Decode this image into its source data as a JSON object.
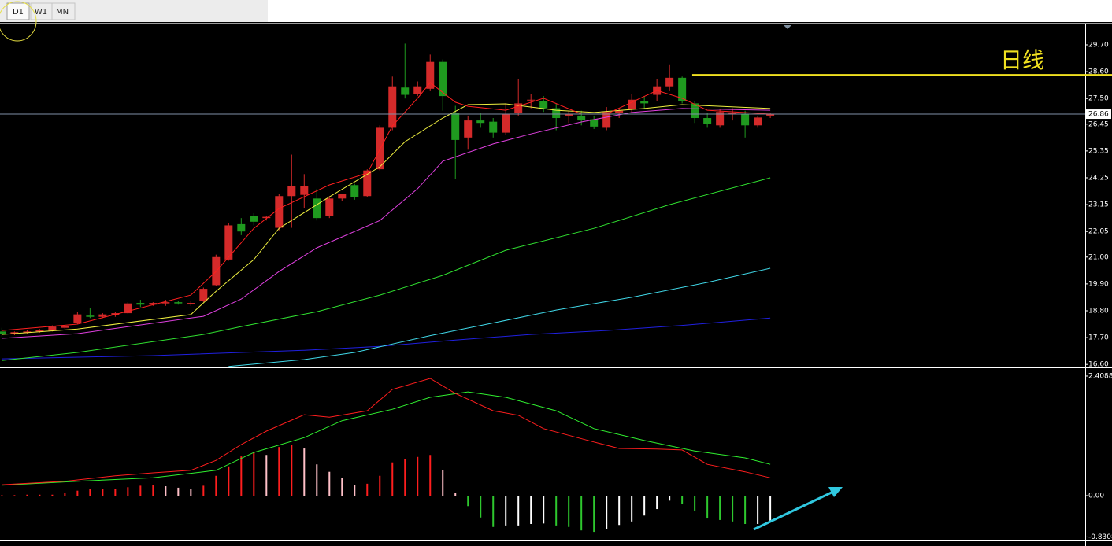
{
  "tabs": [
    "D1",
    "W1",
    "MN"
  ],
  "chart_data": [
    {
      "type": "candlestick",
      "categories": [
        null,
        null,
        null,
        null,
        null,
        null,
        null,
        null,
        null,
        null,
        null,
        null,
        null,
        null,
        null,
        null,
        null,
        null,
        null,
        null,
        null,
        null,
        null,
        null,
        null,
        null,
        null,
        null,
        null,
        null,
        null,
        null,
        null,
        null,
        null,
        null,
        null,
        null,
        null,
        null,
        null,
        null,
        null,
        null,
        null,
        null,
        null,
        null,
        null,
        null,
        null,
        null,
        null,
        null,
        null,
        null,
        null,
        null,
        null,
        null,
        null,
        null
      ],
      "open": [
        17.95,
        17.85,
        17.9,
        17.95,
        17.98,
        18.1,
        18.3,
        18.6,
        18.55,
        18.62,
        18.7,
        19.12,
        19.05,
        19.1,
        19.15,
        19.1,
        19.2,
        19.85,
        20.9,
        22.35,
        22.7,
        22.6,
        22.2,
        23.5,
        23.55,
        23.4,
        22.7,
        23.4,
        23.95,
        23.5,
        24.6,
        26.3,
        27.95,
        27.7,
        27.9,
        29.0,
        26.9,
        25.9,
        26.6,
        26.55,
        26.1,
        26.9,
        27.45,
        27.4,
        27.1,
        26.8,
        26.8,
        26.65,
        26.3,
        26.9,
        27.05,
        27.4,
        27.65,
        28.0,
        28.35,
        27.3,
        26.7,
        26.4,
        26.9,
        26.85,
        26.4,
        26.8
      ],
      "high": [
        18.1,
        17.95,
        18.0,
        18.05,
        18.2,
        18.2,
        18.75,
        18.9,
        18.7,
        18.75,
        19.15,
        19.25,
        19.15,
        19.25,
        19.2,
        19.2,
        19.75,
        21.1,
        22.4,
        22.6,
        22.8,
        22.7,
        23.6,
        25.2,
        24.4,
        23.8,
        23.5,
        23.6,
        24.0,
        24.6,
        26.4,
        28.4,
        29.75,
        28.2,
        29.3,
        29.1,
        27.2,
        26.8,
        26.9,
        26.7,
        27.3,
        28.3,
        27.7,
        27.6,
        27.3,
        27.0,
        27.0,
        26.8,
        27.15,
        27.1,
        27.7,
        27.6,
        28.3,
        28.9,
        28.4,
        27.4,
        26.9,
        27.05,
        27.1,
        27.0,
        26.8,
        26.9
      ],
      "low": [
        17.75,
        17.8,
        17.85,
        17.9,
        17.95,
        18.05,
        18.25,
        18.5,
        18.5,
        18.55,
        18.68,
        18.95,
        19.0,
        19.0,
        19.05,
        19.0,
        19.15,
        19.8,
        20.85,
        21.9,
        22.3,
        22.5,
        22.1,
        22.2,
        23.0,
        22.5,
        22.6,
        23.3,
        23.35,
        23.45,
        24.55,
        26.2,
        27.5,
        27.6,
        27.8,
        27.0,
        24.2,
        25.4,
        26.3,
        25.9,
        26.0,
        26.8,
        27.1,
        26.95,
        26.2,
        26.5,
        26.4,
        26.25,
        26.2,
        26.7,
        26.9,
        27.1,
        27.4,
        27.8,
        27.3,
        26.5,
        26.3,
        26.3,
        26.6,
        25.9,
        26.3,
        26.7
      ],
      "close": [
        17.85,
        17.92,
        17.95,
        18.0,
        18.15,
        18.18,
        18.65,
        18.55,
        18.65,
        18.7,
        19.1,
        19.05,
        19.12,
        19.15,
        19.1,
        19.12,
        19.7,
        21.0,
        22.3,
        22.05,
        22.45,
        22.65,
        23.5,
        23.9,
        23.9,
        22.6,
        23.4,
        23.6,
        23.45,
        24.55,
        26.3,
        28.0,
        27.65,
        28.0,
        29.0,
        27.6,
        25.8,
        26.6,
        26.5,
        26.1,
        26.85,
        27.3,
        27.45,
        27.1,
        26.7,
        26.85,
        26.6,
        26.35,
        26.95,
        27.0,
        27.45,
        27.3,
        28.0,
        28.35,
        27.4,
        26.7,
        26.45,
        26.95,
        26.9,
        26.4,
        26.72,
        26.86
      ],
      "up_color": "#d42a2a",
      "down_color": "#1f9a1f",
      "lines": [
        {
          "color": "#2020e0",
          "x": [
            0,
            12,
            24,
            30,
            36,
            42,
            48,
            54,
            61
          ],
          "values": [
            16.83,
            16.96,
            17.18,
            17.34,
            17.6,
            17.83,
            17.99,
            18.2,
            18.5
          ]
        },
        {
          "color": "#40d8e8",
          "x": [
            18,
            24,
            28,
            34,
            39,
            44,
            50,
            56,
            61
          ],
          "values": [
            16.52,
            16.8,
            17.09,
            17.78,
            18.3,
            18.83,
            19.35,
            19.96,
            20.54
          ]
        },
        {
          "color": "#30e030",
          "x": [
            0,
            6,
            16,
            19,
            25,
            30,
            35,
            40,
            47,
            53,
            61
          ],
          "values": [
            16.76,
            17.09,
            17.83,
            18.15,
            18.76,
            19.44,
            20.25,
            21.28,
            22.18,
            23.15,
            24.25
          ]
        },
        {
          "color": "#e040e0",
          "x": [
            0,
            6,
            16,
            19,
            22,
            25,
            30,
            33,
            35,
            39,
            42,
            46,
            50,
            54,
            61
          ],
          "values": [
            17.67,
            17.86,
            18.57,
            19.28,
            20.41,
            21.38,
            22.5,
            23.8,
            24.93,
            25.64,
            26.05,
            26.54,
            26.93,
            27.09,
            27.02
          ]
        },
        {
          "color": "#f0f040",
          "x": [
            0,
            6,
            15,
            17,
            20,
            22,
            26,
            30,
            32,
            35,
            37,
            40,
            44,
            47,
            51,
            54,
            61
          ],
          "values": [
            17.83,
            18.05,
            18.64,
            19.6,
            20.9,
            22.18,
            23.47,
            24.7,
            25.73,
            26.7,
            27.25,
            27.28,
            27.02,
            26.93,
            27.09,
            27.25,
            27.09
          ]
        },
        {
          "color": "#ff2020",
          "x": [
            0,
            6,
            15,
            17,
            20,
            22,
            26,
            29,
            31,
            33,
            34,
            36,
            37,
            40,
            43,
            46,
            48,
            50,
            52,
            54,
            56,
            61
          ],
          "values": [
            17.99,
            18.25,
            19.44,
            20.41,
            22.18,
            22.99,
            23.96,
            24.44,
            26.38,
            27.51,
            28.15,
            27.35,
            27.18,
            27.02,
            27.51,
            26.86,
            26.86,
            27.35,
            27.83,
            27.51,
            27.02,
            26.86
          ]
        }
      ],
      "current_price": 26.86,
      "annotation": {
        "text": "日线",
        "level": 28.47,
        "color": "#f0e020"
      },
      "xlim": [
        -0.15,
        86
      ],
      "ylim": [
        16.51,
        30.57
      ],
      "yticks": [
        {
          "value": 29.7,
          "label": "29.70"
        },
        {
          "value": 28.6,
          "label": "28.60"
        },
        {
          "value": 27.5,
          "label": "27.50"
        },
        26.45,
        25.35,
        24.25,
        23.15,
        22.05,
        {
          "value": 21,
          "label": "21.00"
        },
        {
          "value": 19.9,
          "label": "19.90"
        },
        {
          "value": 18.8,
          "label": "18.80"
        },
        {
          "value": 17.7,
          "label": "17.70"
        },
        {
          "value": 16.6,
          "label": "16.60"
        }
      ]
    },
    {
      "type": "macd",
      "histogram": [
        0.01,
        0.01,
        0.02,
        0.02,
        0.02,
        0.05,
        0.1,
        0.13,
        0.13,
        0.14,
        0.17,
        0.2,
        0.22,
        0.19,
        0.16,
        0.14,
        0.2,
        0.4,
        0.59,
        0.79,
        0.87,
        0.82,
        0.98,
        1.03,
        0.95,
        0.63,
        0.48,
        0.35,
        0.21,
        0.24,
        0.4,
        0.67,
        0.74,
        0.78,
        0.82,
        0.51,
        0.06,
        -0.21,
        -0.44,
        -0.63,
        -0.6,
        -0.6,
        -0.57,
        -0.56,
        -0.6,
        -0.63,
        -0.7,
        -0.73,
        -0.67,
        -0.59,
        -0.52,
        -0.4,
        -0.27,
        -0.1,
        -0.16,
        -0.3,
        -0.46,
        -0.49,
        -0.52,
        -0.57,
        -0.57,
        -0.52
      ],
      "bar_colors": {
        "up_positive": "#ff1e1e",
        "down_positive": "#ffc0c8",
        "down_negative": "#2ec82e",
        "up_negative": "#ffffff"
      },
      "lines": [
        {
          "color": "#30f030",
          "x": [
            0,
            6,
            12,
            17,
            20,
            24,
            27,
            31,
            34,
            37,
            40,
            44,
            47,
            51,
            55,
            59,
            61
          ],
          "values": [
            0.21,
            0.29,
            0.36,
            0.51,
            0.87,
            1.17,
            1.51,
            1.74,
            1.98,
            2.09,
            1.98,
            1.71,
            1.35,
            1.11,
            0.9,
            0.76,
            0.63
          ]
        },
        {
          "color": "#ff1e1e",
          "x": [
            0,
            5,
            9,
            12,
            15,
            17,
            19,
            21,
            24,
            26,
            29,
            31,
            34,
            36,
            39,
            41,
            43,
            47,
            49,
            52,
            54,
            56,
            59,
            61
          ],
          "values": [
            0.22,
            0.29,
            0.4,
            0.46,
            0.51,
            0.71,
            1.03,
            1.3,
            1.63,
            1.58,
            1.71,
            2.14,
            2.36,
            2.06,
            1.71,
            1.62,
            1.35,
            1.08,
            0.95,
            0.94,
            0.92,
            0.63,
            0.48,
            0.36
          ]
        }
      ],
      "xlim": [
        -0.15,
        86
      ],
      "ylim": [
        -0.887,
        2.535
      ],
      "yticks": [
        2.4088,
        {
          "value": 0,
          "label": "0.00"
        },
        -0.8308
      ]
    }
  ]
}
